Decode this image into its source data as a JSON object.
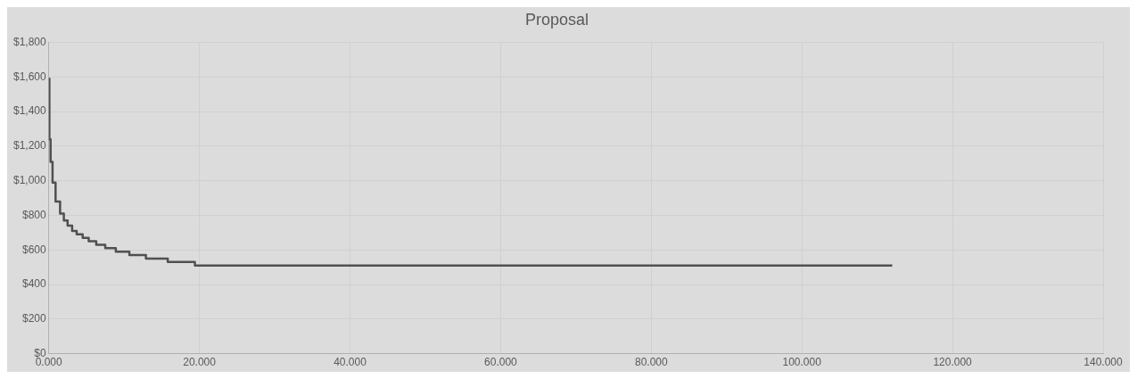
{
  "chart_data": {
    "type": "step",
    "title": "Proposal",
    "x": [
      0,
      0.08,
      0.24,
      0.5,
      0.9,
      1.5,
      2,
      2.5,
      3.1,
      3.7,
      4.5,
      5.3,
      6.3,
      7.5,
      8.9,
      10.7,
      12.9,
      15.8,
      19.4,
      112
    ],
    "series": [
      {
        "color": "#505050",
        "values": [
          1590,
          1240,
          1110,
          990,
          880,
          810,
          770,
          740,
          710,
          690,
          670,
          650,
          630,
          610,
          590,
          570,
          550,
          530,
          510,
          510
        ]
      }
    ],
    "xlim": [
      0,
      140
    ],
    "xticks": [
      {
        "value": 0,
        "label": "0.000"
      },
      {
        "value": 20,
        "label": "20.000"
      },
      {
        "value": 40,
        "label": "40.000"
      },
      {
        "value": 60,
        "label": "60.000"
      },
      {
        "value": 80,
        "label": "80.000"
      },
      {
        "value": 100,
        "label": "100.000"
      },
      {
        "value": 120,
        "label": "120.000"
      },
      {
        "value": 140,
        "label": "140.000"
      }
    ],
    "ylim": [
      0,
      1800
    ],
    "yticks": [
      {
        "value": 0,
        "label": "$0"
      },
      {
        "value": 200,
        "label": "$200"
      },
      {
        "value": 400,
        "label": "$400"
      },
      {
        "value": 600,
        "label": "$600"
      },
      {
        "value": 800,
        "label": "$800"
      },
      {
        "value": 1000,
        "label": "$1,000"
      },
      {
        "value": 1200,
        "label": "$1,200"
      },
      {
        "value": 1400,
        "label": "$1,400"
      },
      {
        "value": 1600,
        "label": "$1,600"
      },
      {
        "value": 1800,
        "label": "$1,800"
      }
    ],
    "grid": true,
    "legend": false,
    "marker": "none",
    "line_style": "solid"
  }
}
